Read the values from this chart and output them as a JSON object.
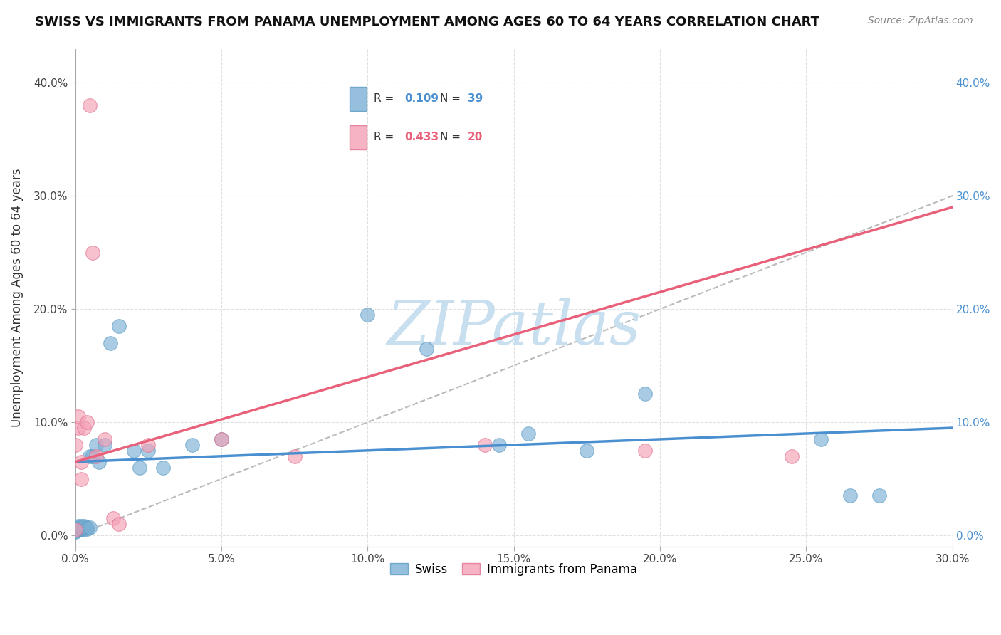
{
  "title": "SWISS VS IMMIGRANTS FROM PANAMA UNEMPLOYMENT AMONG AGES 60 TO 64 YEARS CORRELATION CHART",
  "source": "Source: ZipAtlas.com",
  "ylabel": "Unemployment Among Ages 60 to 64 years",
  "x_tick_labels": [
    "0.0%",
    "5.0%",
    "10.0%",
    "15.0%",
    "20.0%",
    "25.0%",
    "30.0%"
  ],
  "x_tick_vals": [
    0.0,
    0.05,
    0.1,
    0.15,
    0.2,
    0.25,
    0.3
  ],
  "y_tick_labels": [
    "0.0%",
    "10.0%",
    "20.0%",
    "30.0%",
    "40.0%"
  ],
  "y_tick_vals": [
    0.0,
    0.1,
    0.2,
    0.3,
    0.4
  ],
  "xlim": [
    0.0,
    0.3
  ],
  "ylim": [
    -0.01,
    0.43
  ],
  "swiss_color": "#7bafd4",
  "swiss_edge_color": "#5a9bc4",
  "panama_color": "#f4a0b5",
  "panama_edge_color": "#e07090",
  "swiss_line_color": "#4a90d0",
  "panama_line_color": "#e8607a",
  "ref_line_color": "#bbbbbb",
  "swiss_R": 0.109,
  "swiss_N": 39,
  "panama_R": 0.433,
  "panama_N": 20,
  "legend_label_swiss": "Swiss",
  "legend_label_panama": "Immigrants from Panama",
  "swiss_x": [
    0.0,
    0.0,
    0.0,
    0.001,
    0.001,
    0.001,
    0.001,
    0.002,
    0.002,
    0.002,
    0.002,
    0.003,
    0.003,
    0.003,
    0.004,
    0.004,
    0.005,
    0.005,
    0.006,
    0.007,
    0.008,
    0.01,
    0.012,
    0.015,
    0.02,
    0.022,
    0.025,
    0.03,
    0.04,
    0.05,
    0.1,
    0.12,
    0.145,
    0.155,
    0.175,
    0.195,
    0.255,
    0.265,
    0.275
  ],
  "swiss_y": [
    0.005,
    0.003,
    0.004,
    0.005,
    0.006,
    0.007,
    0.008,
    0.005,
    0.006,
    0.007,
    0.008,
    0.006,
    0.007,
    0.008,
    0.006,
    0.007,
    0.007,
    0.07,
    0.07,
    0.08,
    0.065,
    0.08,
    0.17,
    0.185,
    0.075,
    0.06,
    0.075,
    0.06,
    0.08,
    0.085,
    0.195,
    0.165,
    0.08,
    0.09,
    0.075,
    0.125,
    0.085,
    0.035,
    0.035
  ],
  "panama_x": [
    0.0,
    0.0,
    0.001,
    0.001,
    0.002,
    0.002,
    0.003,
    0.004,
    0.005,
    0.006,
    0.007,
    0.01,
    0.013,
    0.015,
    0.025,
    0.05,
    0.075,
    0.14,
    0.195,
    0.245
  ],
  "panama_y": [
    0.005,
    0.08,
    0.095,
    0.105,
    0.065,
    0.05,
    0.095,
    0.1,
    0.38,
    0.25,
    0.07,
    0.085,
    0.015,
    0.01,
    0.08,
    0.085,
    0.07,
    0.08,
    0.075,
    0.07
  ],
  "watermark_text": "ZIPatlas",
  "watermark_color": "#c8dff0",
  "background_color": "#ffffff",
  "grid_color": "#e0e0e0",
  "title_fontsize": 13,
  "source_fontsize": 10,
  "tick_fontsize": 11,
  "ylabel_fontsize": 12,
  "scatter_size": 200,
  "scatter_alpha": 0.65
}
